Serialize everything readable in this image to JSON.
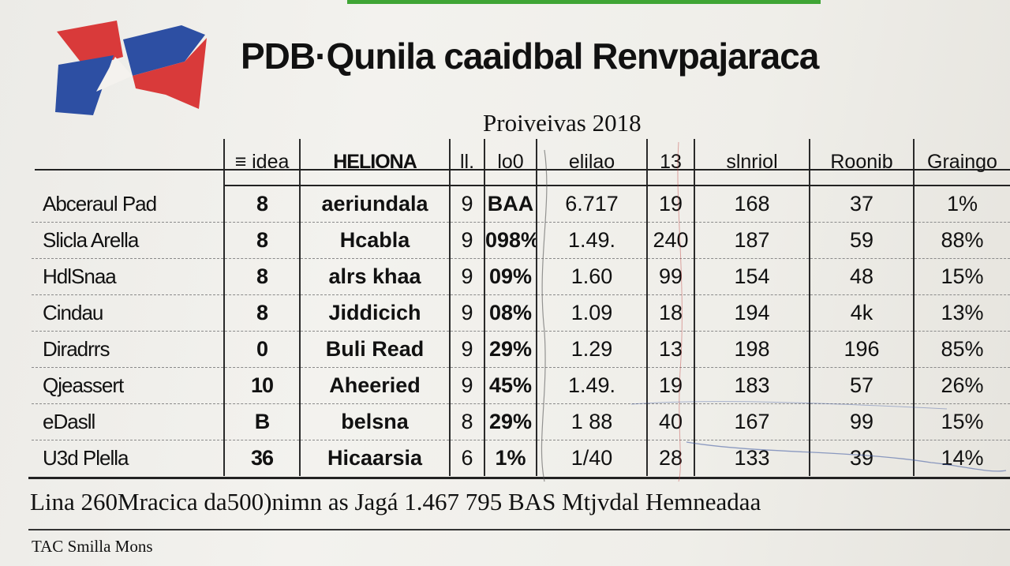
{
  "document": {
    "title": "PDB·Qunila caaidbal Renvpajaraca",
    "subtitle": "Proiveivas 2018",
    "footer": "Lina 260Mracica da500)nimn as Jagá 1.467 795 BAS Mtjvdal Hemneadaa",
    "note": "TAC Smilla Mons"
  },
  "table": {
    "headers": [
      "",
      "≡ idea",
      "HELIONA",
      "ll.",
      "lo0",
      "elilao",
      "13",
      "slnriol",
      "Roonib",
      "Graingo"
    ],
    "rows": [
      [
        "Abceraul Pad",
        "8",
        "aeriundala",
        "9",
        "BAA",
        "6.717",
        "19",
        "168",
        "37",
        "1%"
      ],
      [
        "Slicla Arella",
        "8",
        "Hcabla",
        "9",
        "098%",
        "1.49.",
        "240",
        "187",
        "59",
        "88%"
      ],
      [
        "HdlSnaa",
        "8",
        "alrs khaa",
        "9",
        "09%",
        "1.60",
        "99",
        "154",
        "48",
        "15%"
      ],
      [
        "Cindau",
        "8",
        "Jiddicich",
        "9",
        "08%",
        "1.09",
        "18",
        "194",
        "4k",
        "13%"
      ],
      [
        "Diradrrs",
        "0",
        "Buli Read",
        "9",
        "29%",
        "1.29",
        "13",
        "198",
        "196",
        "85%"
      ],
      [
        "Qjeassert",
        "10",
        "Aheeried",
        "9",
        "45%",
        "1.49.",
        "19",
        "183",
        "57",
        "26%"
      ],
      [
        "eDasll",
        "B",
        "belsna",
        "8",
        "29%",
        "1 88",
        "40",
        "167",
        "99",
        "15%"
      ],
      [
        "U3d Plella",
        "36",
        "Hicaarsia",
        "6",
        "1%",
        "1/40",
        "28",
        "133",
        "39",
        "14%"
      ]
    ]
  },
  "colors": {
    "flag_red": "#d93a3a",
    "flag_blue": "#2d4fa3",
    "accent_green": "#3fa535"
  }
}
